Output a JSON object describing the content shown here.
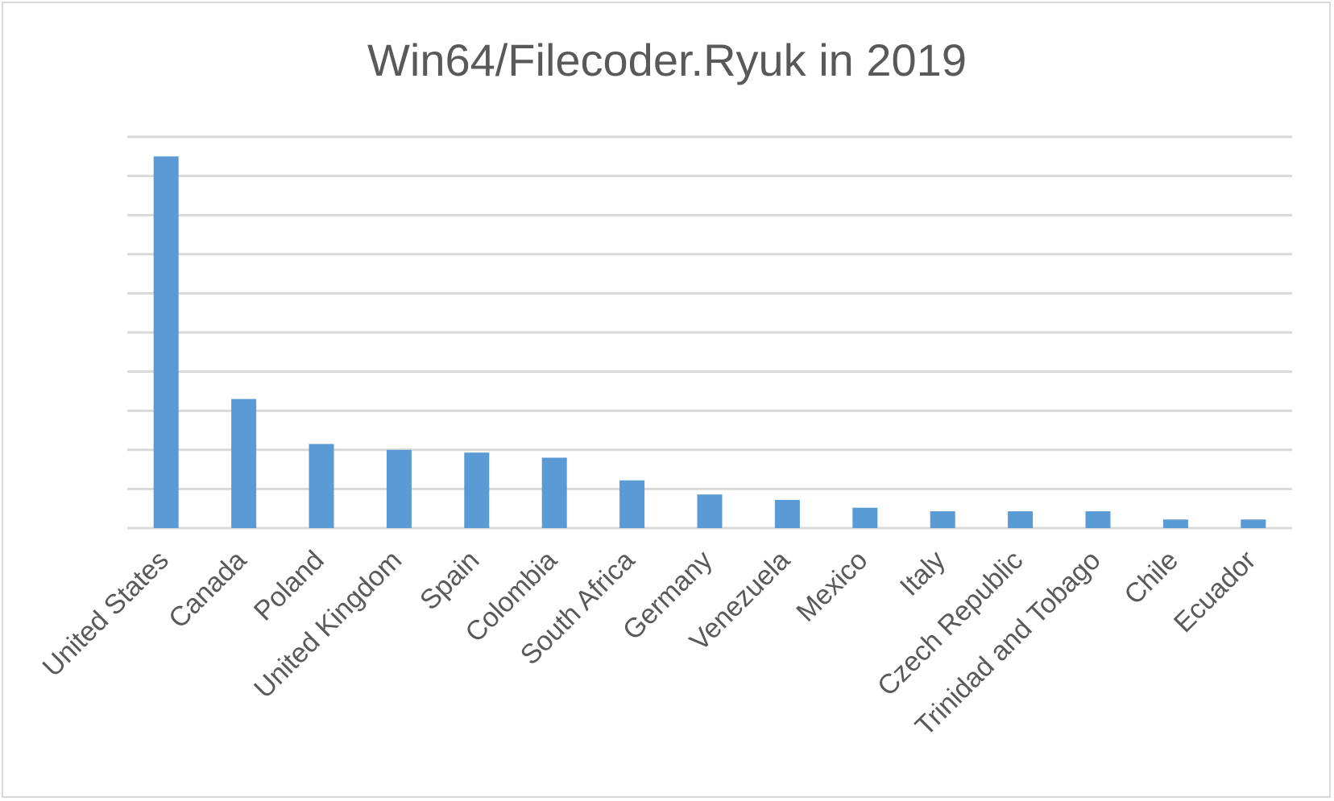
{
  "chart_data": {
    "type": "bar",
    "title": "Win64/Filecoder.Ryuk in 2019",
    "xlabel": "",
    "ylabel": "",
    "categories": [
      "United States",
      "Canada",
      "Poland",
      "United Kingdom",
      "Spain",
      "Colombia",
      "South Africa",
      "Germany",
      "Venezuela",
      "Mexico",
      "Italy",
      "Czech Republic",
      "Trinidad and Tobago",
      "Chile",
      "Ecuador"
    ],
    "values": [
      9.5,
      3.3,
      2.15,
      2.0,
      1.93,
      1.8,
      1.22,
      0.86,
      0.72,
      0.52,
      0.43,
      0.43,
      0.43,
      0.22,
      0.22
    ],
    "ylim": [
      0,
      10
    ],
    "y_ticks_visible": false,
    "grid": true,
    "legend": "none",
    "bar_color": "#5b9bd5",
    "grid_color": "#d9d9d9"
  }
}
